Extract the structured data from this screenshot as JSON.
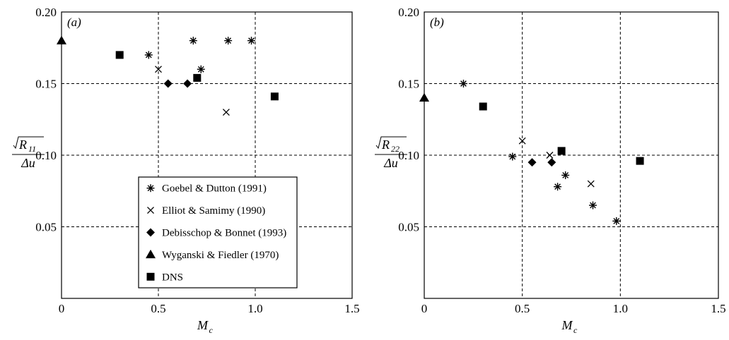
{
  "chart_data": [
    {
      "type": "scatter",
      "panel_label": "(a)",
      "xlabel": "M",
      "xlabel_sub": "c",
      "ylabel_num": "R",
      "ylabel_num_sub": "11",
      "ylabel_den": "Δu",
      "xlim": [
        0,
        1.5
      ],
      "ylim": [
        0,
        0.2
      ],
      "x_ticks": [
        0,
        0.5,
        1.0,
        1.5
      ],
      "x_tick_labels": [
        "0",
        "0.5",
        "1.0",
        "1.5"
      ],
      "y_ticks": [
        0.05,
        0.1,
        0.15,
        0.2
      ],
      "y_tick_labels": [
        "0.05",
        "0.10",
        "0.15",
        "0.20"
      ],
      "grid": true,
      "legend_position": "bottom-center",
      "series": [
        {
          "name": "Goebel & Dutton (1991)",
          "marker": "asterisk",
          "points": [
            [
              0.45,
              0.17
            ],
            [
              0.68,
              0.18
            ],
            [
              0.72,
              0.16
            ],
            [
              0.86,
              0.18
            ],
            [
              0.98,
              0.18
            ]
          ]
        },
        {
          "name": "Elliot & Samimy (1990)",
          "marker": "cross",
          "points": [
            [
              0.5,
              0.16
            ],
            [
              0.85,
              0.13
            ]
          ]
        },
        {
          "name": "Debisschop & Bonnet (1993)",
          "marker": "diamond",
          "points": [
            [
              0.55,
              0.15
            ],
            [
              0.65,
              0.15
            ]
          ]
        },
        {
          "name": "Wyganski & Fiedler (1970)",
          "marker": "triangle",
          "points": [
            [
              0.0,
              0.18
            ]
          ]
        },
        {
          "name": "DNS",
          "marker": "square",
          "points": [
            [
              0.3,
              0.17
            ],
            [
              0.7,
              0.154
            ],
            [
              1.1,
              0.141
            ]
          ]
        }
      ]
    },
    {
      "type": "scatter",
      "panel_label": "(b)",
      "xlabel": "M",
      "xlabel_sub": "c",
      "ylabel_num": "R",
      "ylabel_num_sub": "22",
      "ylabel_den": "Δu",
      "xlim": [
        0,
        1.5
      ],
      "ylim": [
        0,
        0.2
      ],
      "x_ticks": [
        0,
        0.5,
        1.0,
        1.5
      ],
      "x_tick_labels": [
        "0",
        "0.5",
        "1.0",
        "1.5"
      ],
      "y_ticks": [
        0.05,
        0.1,
        0.15,
        0.2
      ],
      "y_tick_labels": [
        "0.05",
        "0.10",
        "0.15",
        "0.20"
      ],
      "grid": true,
      "series": [
        {
          "name": "Goebel & Dutton (1991)",
          "marker": "asterisk",
          "points": [
            [
              0.2,
              0.15
            ],
            [
              0.45,
              0.099
            ],
            [
              0.68,
              0.078
            ],
            [
              0.72,
              0.086
            ],
            [
              0.86,
              0.065
            ],
            [
              0.98,
              0.054
            ]
          ]
        },
        {
          "name": "Elliot & Samimy (1990)",
          "marker": "cross",
          "points": [
            [
              0.5,
              0.11
            ],
            [
              0.64,
              0.1
            ],
            [
              0.85,
              0.08
            ]
          ]
        },
        {
          "name": "Debisschop & Bonnet (1993)",
          "marker": "diamond",
          "points": [
            [
              0.55,
              0.095
            ],
            [
              0.65,
              0.095
            ]
          ]
        },
        {
          "name": "Wyganski & Fiedler (1970)",
          "marker": "triangle",
          "points": [
            [
              0.0,
              0.14
            ]
          ]
        },
        {
          "name": "DNS",
          "marker": "square",
          "points": [
            [
              0.3,
              0.134
            ],
            [
              0.7,
              0.103
            ],
            [
              1.1,
              0.096
            ]
          ]
        }
      ]
    }
  ]
}
